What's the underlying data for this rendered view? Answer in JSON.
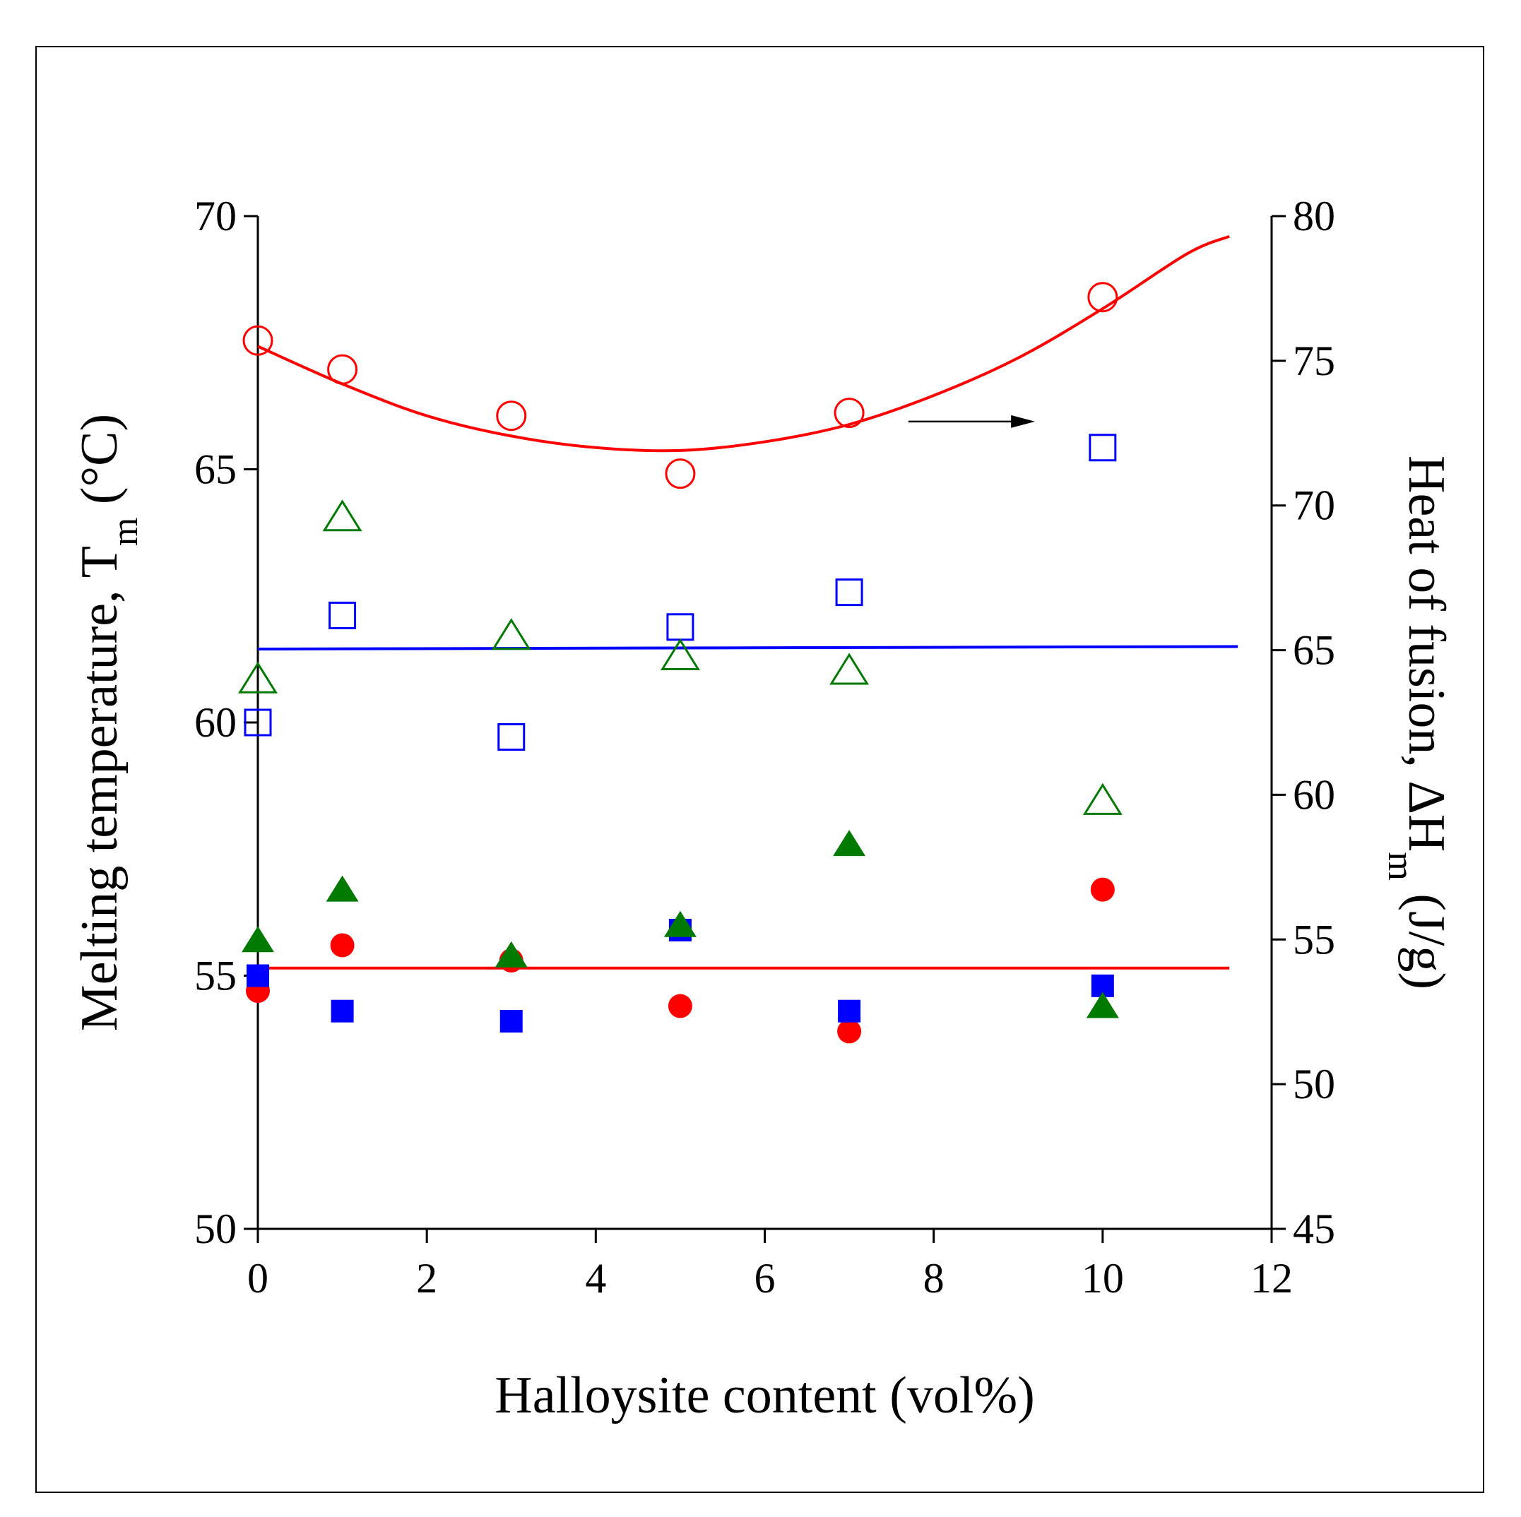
{
  "chart_data": {
    "type": "scatter",
    "xlabel": "Halloysite content (vol%)",
    "ylabel_left": {
      "main": "Melting temperature, T",
      "sub": "m",
      "unit": " (°C)"
    },
    "ylabel_right": {
      "main": "Heat of fusion, ΔH",
      "sub": "m",
      "unit": " (J/g)"
    },
    "xlim": [
      0,
      12
    ],
    "ylim_left": [
      50,
      70
    ],
    "ylim_right": [
      45,
      80
    ],
    "x_ticks": [
      "0",
      "2",
      "4",
      "6",
      "8",
      "10",
      "12"
    ],
    "y_left_ticks": [
      "50",
      "55",
      "60",
      "65",
      "70"
    ],
    "y_right_ticks": [
      "45",
      "50",
      "55",
      "60",
      "65",
      "70",
      "75",
      "80"
    ],
    "series": [
      {
        "name": "red filled circles",
        "axis": "left",
        "marker": "circle",
        "filled": true,
        "color": "#ff0000",
        "x": [
          0,
          1,
          3,
          5,
          7,
          10
        ],
        "y": [
          54.7,
          55.6,
          55.3,
          54.4,
          53.9,
          56.7
        ]
      },
      {
        "name": "blue filled squares",
        "axis": "left",
        "marker": "square",
        "filled": true,
        "color": "#0000ff",
        "x": [
          0,
          1,
          3,
          5,
          7,
          10
        ],
        "y": [
          55.0,
          54.3,
          54.1,
          55.9,
          54.3,
          54.8
        ]
      },
      {
        "name": "green filled triangles",
        "axis": "left",
        "marker": "triangle",
        "filled": true,
        "color": "#007a00",
        "x": [
          0,
          1,
          3,
          5,
          7,
          10
        ],
        "y": [
          55.7,
          56.7,
          55.4,
          56.0,
          57.6,
          54.4
        ]
      },
      {
        "name": "red open circles",
        "axis": "right",
        "marker": "circle",
        "filled": false,
        "color": "#ff0000",
        "x": [
          0,
          1,
          3,
          5,
          7,
          10
        ],
        "y": [
          75.7,
          74.7,
          73.1,
          71.1,
          73.2,
          77.2
        ]
      },
      {
        "name": "blue open squares",
        "axis": "right",
        "marker": "square",
        "filled": false,
        "color": "#0000ff",
        "x": [
          0,
          1,
          3,
          5,
          7,
          10
        ],
        "y": [
          62.5,
          66.2,
          62.0,
          65.8,
          67.0,
          72.0
        ]
      },
      {
        "name": "green open triangles",
        "axis": "right",
        "marker": "triangle",
        "filled": false,
        "color": "#007a00",
        "x": [
          0,
          1,
          3,
          5,
          7,
          10
        ],
        "y": [
          64.0,
          69.6,
          65.5,
          64.8,
          64.3,
          59.8
        ]
      }
    ],
    "fit_lines": [
      {
        "name": "quadratic fit (heat of fusion)",
        "axis": "right",
        "color": "#ff0000",
        "x": [
          0,
          1,
          2,
          3,
          4,
          5,
          6,
          7,
          8,
          9,
          10,
          11,
          11.5
        ],
        "y": [
          75.5,
          74.2,
          73.1,
          72.4,
          72.0,
          71.9,
          72.2,
          72.8,
          73.8,
          75.1,
          76.8,
          78.7,
          79.3
        ]
      },
      {
        "name": "linear fit (blue)",
        "axis": "left",
        "color": "#0000ff",
        "x": [
          0,
          11.6
        ],
        "y": [
          61.45,
          61.5
        ]
      },
      {
        "name": "linear fit (red)",
        "axis": "left",
        "color": "#ff0000",
        "x": [
          0,
          11.5
        ],
        "y": [
          55.15,
          55.15
        ]
      }
    ],
    "annotations": [
      {
        "type": "arrow",
        "direction": "right",
        "meaning": "open circles refer to right axis",
        "x_from": 7.7,
        "x_to": 9.2,
        "y_right": 72.9
      }
    ]
  }
}
